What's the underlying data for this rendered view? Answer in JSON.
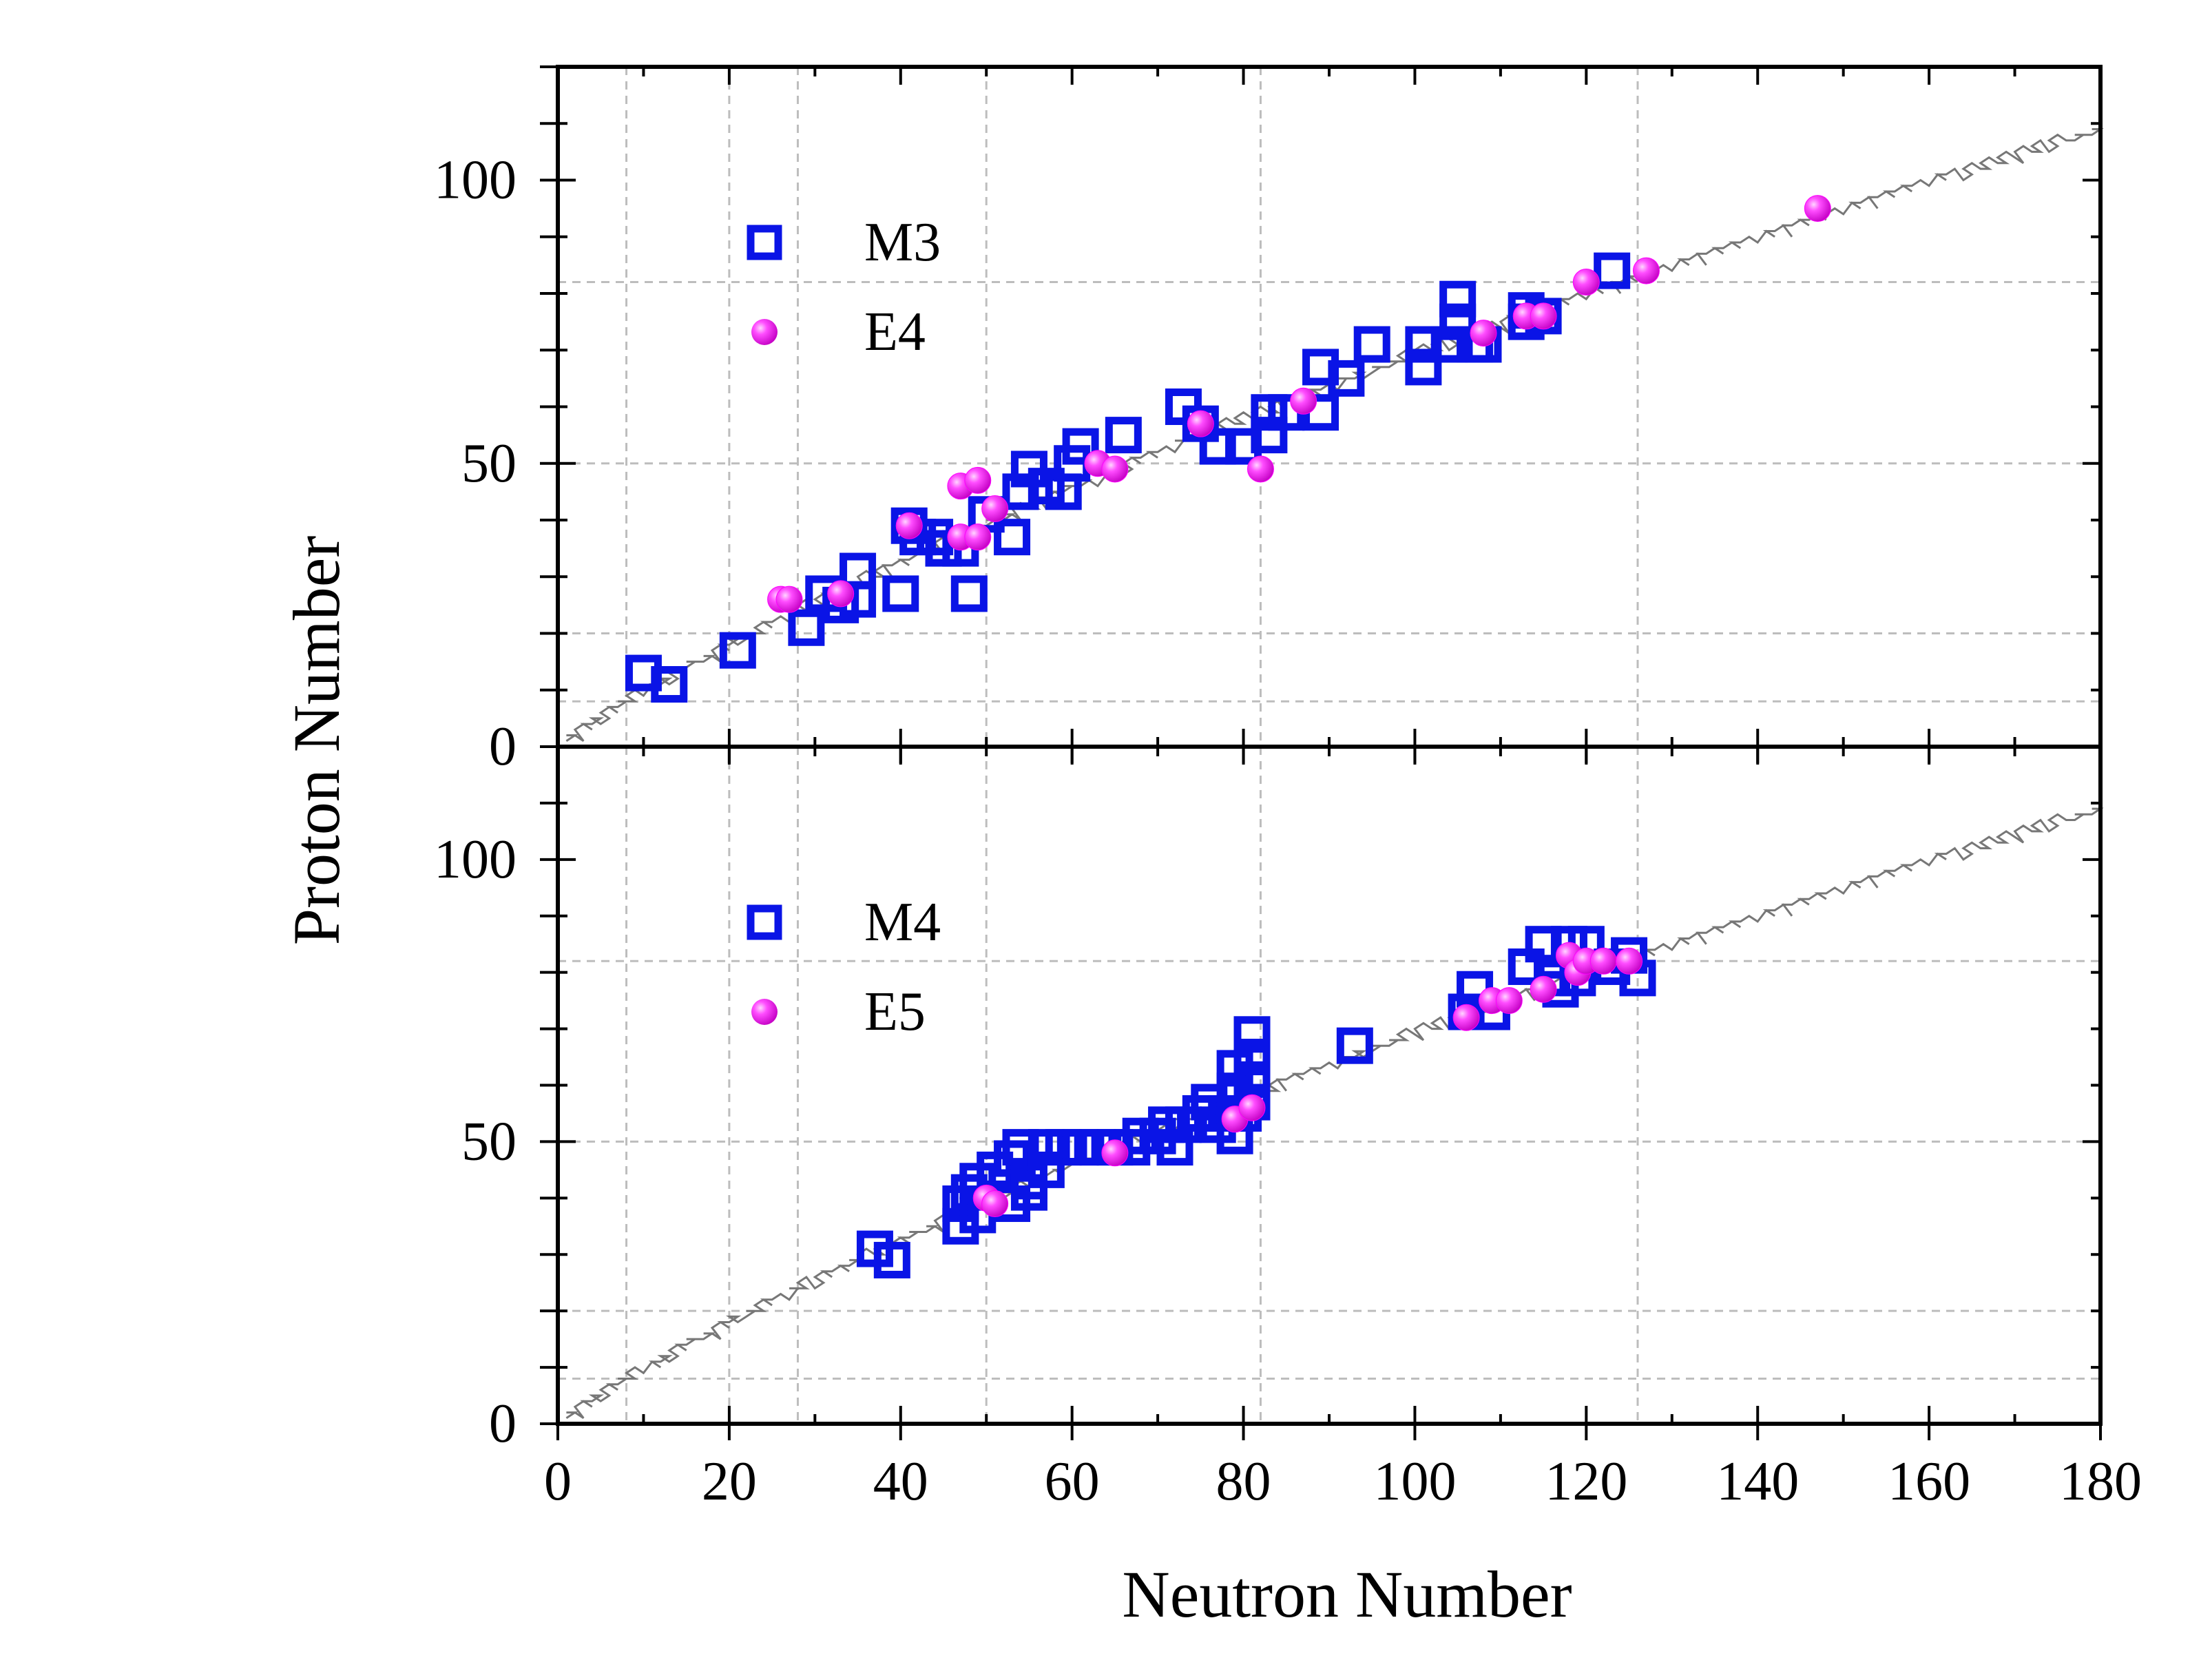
{
  "chart_data": [
    {
      "type": "scatter",
      "panel": "top",
      "xlabel": "Neutron Number",
      "ylabel": "Proton Number",
      "xlim": [
        0,
        180
      ],
      "ylim": [
        0,
        120
      ],
      "xticks": [
        0,
        20,
        40,
        60,
        80,
        100,
        120,
        140,
        160,
        180
      ],
      "yticks": [
        0,
        50,
        100
      ],
      "magic_lines_x": [
        8,
        20,
        28,
        50,
        82,
        126
      ],
      "magic_lines_y": [
        8,
        20,
        50,
        82
      ],
      "grid": true,
      "legend_position": "top-left",
      "series": [
        {
          "name": "M3",
          "marker": "open-square",
          "color": "#0a14e6",
          "points": [
            [
              10,
              13
            ],
            [
              13,
              11
            ],
            [
              21,
              17
            ],
            [
              29,
              21
            ],
            [
              31,
              27
            ],
            [
              33,
              25
            ],
            [
              35,
              31
            ],
            [
              35,
              26
            ],
            [
              40,
              27
            ],
            [
              41,
              39
            ],
            [
              42,
              37
            ],
            [
              44,
              37
            ],
            [
              45,
              35
            ],
            [
              47,
              35
            ],
            [
              48,
              27
            ],
            [
              50,
              41
            ],
            [
              53,
              37
            ],
            [
              54,
              45
            ],
            [
              55,
              49
            ],
            [
              57,
              46
            ],
            [
              59,
              45
            ],
            [
              60,
              50
            ],
            [
              61,
              53
            ],
            [
              66,
              55
            ],
            [
              73,
              60
            ],
            [
              75,
              57
            ],
            [
              77,
              53
            ],
            [
              80,
              53
            ],
            [
              83,
              55
            ],
            [
              83,
              59
            ],
            [
              85,
              59
            ],
            [
              89,
              59
            ],
            [
              89,
              67
            ],
            [
              92,
              65
            ],
            [
              95,
              71
            ],
            [
              101,
              67
            ],
            [
              101,
              71
            ],
            [
              104,
              71
            ],
            [
              105,
              79
            ],
            [
              105,
              75
            ],
            [
              107,
              71
            ],
            [
              108,
              71
            ],
            [
              113,
              77
            ],
            [
              113,
              75
            ],
            [
              115,
              76
            ],
            [
              123,
              84
            ]
          ]
        },
        {
          "name": "E4",
          "marker": "filled-sphere",
          "color": "#ff14ff",
          "points": [
            [
              26,
              26
            ],
            [
              27,
              26
            ],
            [
              33,
              27
            ],
            [
              41,
              39
            ],
            [
              47,
              46
            ],
            [
              47,
              37
            ],
            [
              49,
              47
            ],
            [
              49,
              37
            ],
            [
              51,
              42
            ],
            [
              63,
              50
            ],
            [
              65,
              49
            ],
            [
              75,
              57
            ],
            [
              82,
              49
            ],
            [
              87,
              61
            ],
            [
              108,
              73
            ],
            [
              113,
              76
            ],
            [
              115,
              76
            ],
            [
              120,
              82
            ],
            [
              127,
              84
            ],
            [
              147,
              95
            ]
          ]
        }
      ]
    },
    {
      "type": "scatter",
      "panel": "bottom",
      "xlabel": "Neutron Number",
      "ylabel": "Proton Number",
      "xlim": [
        0,
        180
      ],
      "ylim": [
        0,
        120
      ],
      "xticks": [
        0,
        20,
        40,
        60,
        80,
        100,
        120,
        140,
        160,
        180
      ],
      "yticks": [
        0,
        50,
        100
      ],
      "magic_lines_x": [
        8,
        20,
        28,
        50,
        82,
        126
      ],
      "magic_lines_y": [
        8,
        20,
        50,
        82
      ],
      "grid": true,
      "legend_position": "top-left",
      "series": [
        {
          "name": "M4",
          "marker": "open-square",
          "color": "#0a14e6",
          "points": [
            [
              37,
              31
            ],
            [
              39,
              29
            ],
            [
              47,
              39
            ],
            [
              47,
              35
            ],
            [
              48,
              41
            ],
            [
              49,
              43
            ],
            [
              49,
              37
            ],
            [
              51,
              45
            ],
            [
              53,
              39
            ],
            [
              53,
              47
            ],
            [
              54,
              49
            ],
            [
              55,
              43
            ],
            [
              55,
              41
            ],
            [
              57,
              49
            ],
            [
              57,
              45
            ],
            [
              59,
              49
            ],
            [
              61,
              49
            ],
            [
              63,
              49
            ],
            [
              65,
              49
            ],
            [
              67,
              49
            ],
            [
              68,
              51
            ],
            [
              70,
              51
            ],
            [
              71,
              53
            ],
            [
              72,
              49
            ],
            [
              73,
              53
            ],
            [
              75,
              55
            ],
            [
              76,
              57
            ],
            [
              77,
              53
            ],
            [
              78,
              55
            ],
            [
              79,
              59
            ],
            [
              79,
              63
            ],
            [
              79,
              51
            ],
            [
              80,
              55
            ],
            [
              81,
              57
            ],
            [
              81,
              61
            ],
            [
              81,
              65
            ],
            [
              81,
              69
            ],
            [
              93,
              67
            ],
            [
              106,
              73
            ],
            [
              107,
              77
            ],
            [
              109,
              73
            ],
            [
              113,
              81
            ],
            [
              115,
              85
            ],
            [
              116,
              79
            ],
            [
              117,
              77
            ],
            [
              118,
              85
            ],
            [
              119,
              79
            ],
            [
              120,
              85
            ],
            [
              123,
              81
            ],
            [
              125,
              83
            ],
            [
              126,
              79
            ]
          ]
        },
        {
          "name": "E5",
          "marker": "filled-sphere",
          "color": "#ff14ff",
          "points": [
            [
              50,
              40
            ],
            [
              51,
              39
            ],
            [
              65,
              48
            ],
            [
              79,
              54
            ],
            [
              81,
              56
            ],
            [
              106,
              72
            ],
            [
              109,
              75
            ],
            [
              111,
              75
            ],
            [
              115,
              77
            ],
            [
              118,
              83
            ],
            [
              119,
              80
            ],
            [
              120,
              82
            ],
            [
              122,
              82
            ],
            [
              125,
              82
            ]
          ]
        }
      ]
    }
  ]
}
